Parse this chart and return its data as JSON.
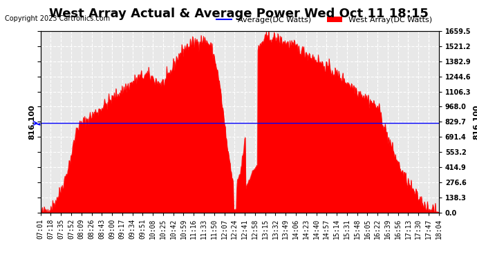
{
  "title": "West Array Actual & Average Power Wed Oct 11 18:15",
  "copyright": "Copyright 2023 Cartronics.com",
  "legend_avg": "Average(DC Watts)",
  "legend_west": "West Array(DC Watts)",
  "legend_avg_color": "blue",
  "legend_west_color": "red",
  "avg_value": 816.1,
  "y_left_label": "816.100",
  "y_right_ticks": [
    0.0,
    138.3,
    276.6,
    414.9,
    553.2,
    691.4,
    829.7,
    968.0,
    1106.3,
    1244.6,
    1382.9,
    1521.2,
    1659.5
  ],
  "ymin": 0.0,
  "ymax": 1659.5,
  "background_color": "#ffffff",
  "plot_bg_color": "#e8e8e8",
  "grid_color": "#ffffff",
  "fill_color": "red",
  "avg_line_color": "blue",
  "x_labels": [
    "07:01",
    "07:18",
    "07:35",
    "07:52",
    "08:09",
    "08:26",
    "08:43",
    "09:00",
    "09:17",
    "09:34",
    "09:51",
    "10:08",
    "10:25",
    "10:42",
    "10:59",
    "11:16",
    "11:33",
    "11:50",
    "12:07",
    "12:24",
    "12:41",
    "12:58",
    "13:15",
    "13:32",
    "13:49",
    "14:06",
    "14:23",
    "14:40",
    "14:57",
    "15:14",
    "15:31",
    "15:48",
    "16:05",
    "16:22",
    "16:39",
    "16:56",
    "17:13",
    "17:30",
    "17:47",
    "18:04"
  ],
  "title_fontsize": 13,
  "copyright_fontsize": 7,
  "tick_fontsize": 7,
  "label_fontsize": 8
}
